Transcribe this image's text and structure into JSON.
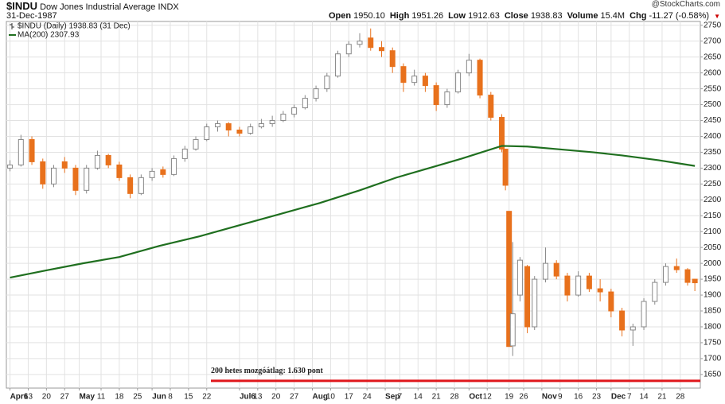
{
  "chart_data": {
    "type": "candlestick",
    "title": "$INDU",
    "subtitle": "Dow Jones Industrial Average INDX",
    "date": "31-Dec-1987",
    "source": "@StockCharts.com",
    "quote": [
      {
        "label": "Open",
        "value": "1950.10"
      },
      {
        "label": "High",
        "value": "1951.26"
      },
      {
        "label": "Low",
        "value": "1912.63"
      },
      {
        "label": "Close",
        "value": "1938.83"
      },
      {
        "label": "Volume",
        "value": "15.4M"
      },
      {
        "label": "Chg",
        "value": "-11.27 (-0.58%)"
      }
    ],
    "series": [
      {
        "name": "$INDU (Daily) 1938.83 (31 Dec)",
        "type": "candlestick",
        "up_color": "#888888",
        "down_color": "#e8711c",
        "x": [
          0,
          3,
          6,
          9,
          12,
          15,
          18,
          21,
          24,
          27,
          30,
          33,
          36,
          39,
          42,
          45,
          48,
          51,
          54,
          57,
          60,
          63,
          66,
          69,
          72,
          75,
          78,
          81,
          84,
          87,
          90,
          93,
          96,
          99,
          102,
          105,
          108,
          111,
          114,
          117,
          120,
          123,
          126,
          129,
          132,
          135,
          136,
          137,
          138,
          140,
          142,
          144,
          147,
          150,
          153,
          156,
          159,
          162,
          165,
          168,
          171,
          174,
          177,
          180,
          183,
          186,
          188
        ],
        "open": [
          2300,
          2310,
          2390,
          2320,
          2250,
          2320,
          2300,
          2230,
          2300,
          2340,
          2310,
          2270,
          2220,
          2270,
          2295,
          2280,
          2330,
          2360,
          2390,
          2430,
          2440,
          2420,
          2410,
          2430,
          2440,
          2450,
          2470,
          2490,
          2520,
          2550,
          2590,
          2660,
          2690,
          2710,
          2680,
          2670,
          2620,
          2570,
          2590,
          2560,
          2500,
          2540,
          2600,
          2640,
          2530,
          2460,
          2360,
          2164,
          1740,
          1900,
          1990,
          1800,
          1950,
          2000,
          1960,
          1900,
          1960,
          1920,
          1910,
          1850,
          1790,
          1800,
          1880,
          1940,
          1990,
          1980,
          1950.1
        ],
        "high": [
          2325,
          2405,
          2400,
          2330,
          2310,
          2335,
          2310,
          2310,
          2355,
          2345,
          2320,
          2280,
          2280,
          2300,
          2305,
          2340,
          2370,
          2400,
          2440,
          2450,
          2445,
          2430,
          2440,
          2455,
          2465,
          2480,
          2500,
          2530,
          2560,
          2600,
          2670,
          2700,
          2725,
          2740,
          2700,
          2680,
          2630,
          2610,
          2600,
          2570,
          2550,
          2610,
          2660,
          2645,
          2540,
          2470,
          2360,
          2164,
          2067,
          2020,
          1995,
          1960,
          2050,
          2010,
          1970,
          1975,
          1970,
          1950,
          1920,
          1860,
          1810,
          1890,
          1950,
          2000,
          2015,
          1985,
          1951.26
        ],
        "low": [
          2290,
          2305,
          2310,
          2235,
          2240,
          2285,
          2215,
          2220,
          2295,
          2300,
          2260,
          2205,
          2215,
          2260,
          2270,
          2275,
          2320,
          2355,
          2385,
          2415,
          2400,
          2400,
          2405,
          2425,
          2430,
          2445,
          2460,
          2485,
          2510,
          2540,
          2585,
          2650,
          2680,
          2670,
          2650,
          2600,
          2540,
          2560,
          2540,
          2480,
          2490,
          2535,
          2590,
          2520,
          2450,
          2350,
          2230,
          1738,
          1708,
          1880,
          1780,
          1790,
          1940,
          1950,
          1880,
          1895,
          1910,
          1880,
          1830,
          1770,
          1740,
          1790,
          1870,
          1930,
          1970,
          1930,
          1912.63
        ],
        "close": [
          2310,
          2390,
          2320,
          2250,
          2300,
          2300,
          2230,
          2300,
          2340,
          2310,
          2270,
          2220,
          2270,
          2290,
          2280,
          2330,
          2360,
          2390,
          2430,
          2440,
          2420,
          2410,
          2430,
          2440,
          2450,
          2470,
          2490,
          2520,
          2550,
          2590,
          2660,
          2690,
          2700,
          2680,
          2670,
          2620,
          2570,
          2590,
          2560,
          2500,
          2540,
          2600,
          2640,
          2530,
          2460,
          2360,
          2246,
          1738,
          1841,
          2010,
          1800,
          1950,
          2000,
          1960,
          1900,
          1960,
          1920,
          1910,
          1850,
          1790,
          1800,
          1880,
          1940,
          1990,
          1980,
          1940,
          1938.83
        ]
      },
      {
        "name": "MA(200) 2307.93",
        "type": "line",
        "color": "#1f6f1f",
        "x": [
          0,
          10,
          20,
          30,
          41,
          52,
          63,
          74,
          85,
          96,
          106,
          115,
          124,
          135,
          142,
          150,
          160,
          168,
          178,
          188
        ],
        "values": [
          1955,
          1978,
          2000,
          2020,
          2055,
          2085,
          2120,
          2155,
          2190,
          2230,
          2270,
          2300,
          2330,
          2370,
          2368,
          2360,
          2350,
          2340,
          2325,
          2307
        ]
      }
    ],
    "xlim": [
      -1,
      189.5
    ],
    "xticks": [
      {
        "value": 0,
        "label": "Apr6"
      },
      {
        "value": 5,
        "label": "13"
      },
      {
        "value": 10,
        "label": "20"
      },
      {
        "value": 15,
        "label": "27"
      },
      {
        "value": 19,
        "label": "May"
      },
      {
        "value": 25,
        "label": "11"
      },
      {
        "value": 30,
        "label": "18"
      },
      {
        "value": 35,
        "label": "25"
      },
      {
        "value": 39,
        "label": "Jun"
      },
      {
        "value": 44,
        "label": "8"
      },
      {
        "value": 49,
        "label": "15"
      },
      {
        "value": 54,
        "label": "22"
      },
      {
        "value": 63,
        "label": "Jul6"
      },
      {
        "value": 68,
        "label": "13"
      },
      {
        "value": 73,
        "label": "20"
      },
      {
        "value": 78,
        "label": "27"
      },
      {
        "value": 83,
        "label": "Aug"
      },
      {
        "value": 88,
        "label": "10"
      },
      {
        "value": 93,
        "label": "17"
      },
      {
        "value": 98,
        "label": "24"
      },
      {
        "value": 103,
        "label": "Sep"
      },
      {
        "value": 107,
        "label": "7"
      },
      {
        "value": 112,
        "label": "14"
      },
      {
        "value": 117,
        "label": "21"
      },
      {
        "value": 122,
        "label": "28"
      },
      {
        "value": 126,
        "label": "Oct"
      },
      {
        "value": 131,
        "label": "12"
      },
      {
        "value": 137,
        "label": "19"
      },
      {
        "value": 141,
        "label": "26"
      },
      {
        "value": 146,
        "label": "Nov"
      },
      {
        "value": 151,
        "label": "9"
      },
      {
        "value": 156,
        "label": "16"
      },
      {
        "value": 161,
        "label": "23"
      },
      {
        "value": 165,
        "label": "Dec"
      },
      {
        "value": 170,
        "label": "7"
      },
      {
        "value": 174,
        "label": "14"
      },
      {
        "value": 179,
        "label": "21"
      },
      {
        "value": 184,
        "label": "28"
      }
    ],
    "ylim": [
      1607,
      2762
    ],
    "yticks": [
      1650,
      1700,
      1750,
      1800,
      1850,
      1900,
      1950,
      2000,
      2050,
      2100,
      2150,
      2200,
      2250,
      2300,
      2350,
      2400,
      2450,
      2500,
      2550,
      2600,
      2650,
      2700,
      2750
    ],
    "grid": true,
    "legend": "upper left",
    "annotation": {
      "text": "200 hetes mozgóátlag: 1.630 pont",
      "value": 1630,
      "color": "#e0161b"
    }
  }
}
